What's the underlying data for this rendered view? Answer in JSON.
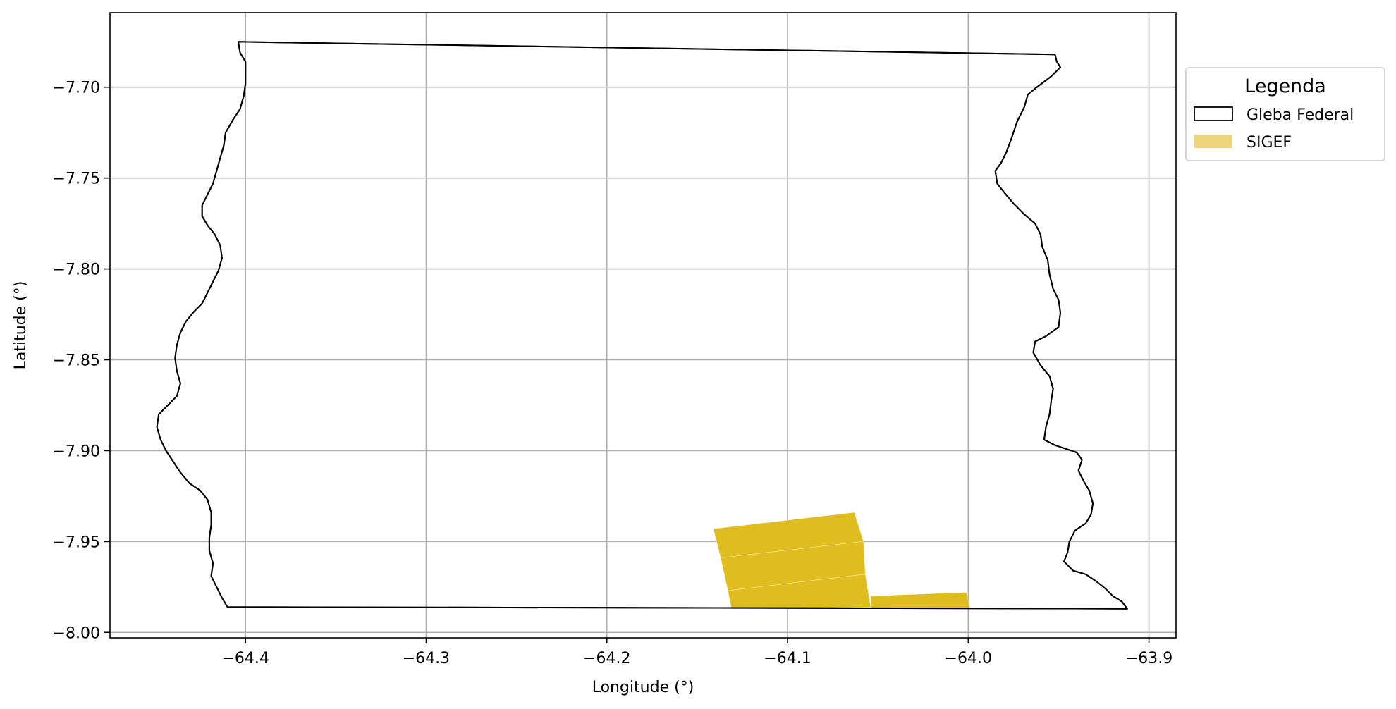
{
  "chart_data": {
    "type": "map",
    "xlabel": "Longitude (°)",
    "ylabel": "Latitude (°)",
    "xlim": [
      -64.475,
      -63.885
    ],
    "ylim": [
      -8.003,
      -7.659
    ],
    "x_ticks": [
      -64.4,
      -64.3,
      -64.2,
      -64.1,
      -64.0,
      -63.9
    ],
    "x_tick_labels": [
      "−64.4",
      "−64.3",
      "−64.2",
      "−64.1",
      "−64.0",
      "−63.9"
    ],
    "y_ticks": [
      -7.7,
      -7.75,
      -7.8,
      -7.85,
      -7.9,
      -7.95,
      -8.0
    ],
    "y_tick_labels": [
      "−7.70",
      "−7.75",
      "−7.80",
      "−7.85",
      "−7.90",
      "−7.95",
      "−8.00"
    ],
    "grid": true,
    "legend": {
      "title": "Legenda",
      "position": "outside-right-top",
      "entries": [
        "Gleba Federal",
        "SIGEF"
      ]
    },
    "layers": [
      {
        "name": "Gleba Federal",
        "style": "outline",
        "stroke": "#000000",
        "fill": "none",
        "polygons": [
          [
            [
              -64.404,
              -7.675
            ],
            [
              -63.952,
              -7.682
            ],
            [
              -63.951,
              -7.686
            ],
            [
              -63.949,
              -7.689
            ],
            [
              -63.954,
              -7.694
            ],
            [
              -63.962,
              -7.7
            ],
            [
              -63.967,
              -7.704
            ],
            [
              -63.969,
              -7.711
            ],
            [
              -63.973,
              -7.719
            ],
            [
              -63.976,
              -7.728
            ],
            [
              -63.979,
              -7.736
            ],
            [
              -63.982,
              -7.742
            ],
            [
              -63.985,
              -7.746
            ],
            [
              -63.984,
              -7.753
            ],
            [
              -63.98,
              -7.758
            ],
            [
              -63.975,
              -7.764
            ],
            [
              -63.969,
              -7.77
            ],
            [
              -63.963,
              -7.775
            ],
            [
              -63.96,
              -7.781
            ],
            [
              -63.959,
              -7.788
            ],
            [
              -63.956,
              -7.795
            ],
            [
              -63.955,
              -7.803
            ],
            [
              -63.953,
              -7.811
            ],
            [
              -63.95,
              -7.817
            ],
            [
              -63.949,
              -7.824
            ],
            [
              -63.95,
              -7.832
            ],
            [
              -63.957,
              -7.837
            ],
            [
              -63.963,
              -7.84
            ],
            [
              -63.964,
              -7.846
            ],
            [
              -63.96,
              -7.853
            ],
            [
              -63.955,
              -7.859
            ],
            [
              -63.953,
              -7.866
            ],
            [
              -63.954,
              -7.872
            ],
            [
              -63.955,
              -7.88
            ],
            [
              -63.957,
              -7.887
            ],
            [
              -63.958,
              -7.894
            ],
            [
              -63.952,
              -7.897
            ],
            [
              -63.946,
              -7.899
            ],
            [
              -63.94,
              -7.901
            ],
            [
              -63.937,
              -7.905
            ],
            [
              -63.939,
              -7.911
            ],
            [
              -63.936,
              -7.917
            ],
            [
              -63.933,
              -7.922
            ],
            [
              -63.931,
              -7.929
            ],
            [
              -63.932,
              -7.935
            ],
            [
              -63.935,
              -7.94
            ],
            [
              -63.941,
              -7.944
            ],
            [
              -63.944,
              -7.95
            ],
            [
              -63.945,
              -7.956
            ],
            [
              -63.947,
              -7.961
            ],
            [
              -63.942,
              -7.966
            ],
            [
              -63.935,
              -7.968
            ],
            [
              -63.929,
              -7.972
            ],
            [
              -63.924,
              -7.976
            ],
            [
              -63.92,
              -7.98
            ],
            [
              -63.915,
              -7.983
            ],
            [
              -63.912,
              -7.987
            ],
            [
              -64.41,
              -7.986
            ],
            [
              -64.413,
              -7.981
            ],
            [
              -64.416,
              -7.975
            ],
            [
              -64.419,
              -7.969
            ],
            [
              -64.418,
              -7.962
            ],
            [
              -64.42,
              -7.955
            ],
            [
              -64.42,
              -7.948
            ],
            [
              -64.419,
              -7.941
            ],
            [
              -64.419,
              -7.934
            ],
            [
              -64.421,
              -7.927
            ],
            [
              -64.425,
              -7.922
            ],
            [
              -64.431,
              -7.918
            ],
            [
              -64.436,
              -7.912
            ],
            [
              -64.44,
              -7.906
            ],
            [
              -64.444,
              -7.9
            ],
            [
              -64.447,
              -7.894
            ],
            [
              -64.449,
              -7.887
            ],
            [
              -64.448,
              -7.88
            ],
            [
              -64.443,
              -7.875
            ],
            [
              -64.438,
              -7.87
            ],
            [
              -64.436,
              -7.863
            ],
            [
              -64.438,
              -7.856
            ],
            [
              -64.439,
              -7.849
            ],
            [
              -64.438,
              -7.842
            ],
            [
              -64.436,
              -7.835
            ],
            [
              -64.433,
              -7.829
            ],
            [
              -64.429,
              -7.824
            ],
            [
              -64.424,
              -7.819
            ],
            [
              -64.421,
              -7.813
            ],
            [
              -64.418,
              -7.807
            ],
            [
              -64.415,
              -7.801
            ],
            [
              -64.413,
              -7.794
            ],
            [
              -64.414,
              -7.787
            ],
            [
              -64.417,
              -7.781
            ],
            [
              -64.421,
              -7.776
            ],
            [
              -64.424,
              -7.771
            ],
            [
              -64.424,
              -7.765
            ],
            [
              -64.421,
              -7.759
            ],
            [
              -64.418,
              -7.753
            ],
            [
              -64.416,
              -7.746
            ],
            [
              -64.414,
              -7.739
            ],
            [
              -64.412,
              -7.732
            ],
            [
              -64.411,
              -7.725
            ],
            [
              -64.407,
              -7.718
            ],
            [
              -64.403,
              -7.712
            ],
            [
              -64.401,
              -7.705
            ],
            [
              -64.4,
              -7.698
            ],
            [
              -64.4,
              -7.692
            ],
            [
              -64.4,
              -7.686
            ],
            [
              -64.403,
              -7.681
            ],
            [
              -64.404,
              -7.675
            ]
          ]
        ]
      },
      {
        "name": "SIGEF",
        "style": "filled",
        "fill": "#dfbd1e",
        "legend_fill": "#ecd57a",
        "polygons": [
          [
            [
              -64.141,
              -7.943
            ],
            [
              -64.063,
              -7.934
            ],
            [
              -64.058,
              -7.95
            ],
            [
              -64.137,
              -7.959
            ]
          ],
          [
            [
              -64.137,
              -7.959
            ],
            [
              -64.058,
              -7.95
            ],
            [
              -64.057,
              -7.968
            ],
            [
              -64.133,
              -7.977
            ]
          ],
          [
            [
              -64.133,
              -7.977
            ],
            [
              -64.057,
              -7.968
            ],
            [
              -64.054,
              -7.986
            ],
            [
              -64.131,
              -7.987
            ]
          ],
          [
            [
              -64.054,
              -7.98
            ],
            [
              -64.001,
              -7.978
            ],
            [
              -63.999,
              -7.987
            ],
            [
              -64.054,
              -7.987
            ]
          ]
        ]
      }
    ]
  },
  "colors": {
    "grid": "#b0b0b0",
    "axis": "#000000",
    "legend_border": "#cccccc"
  }
}
